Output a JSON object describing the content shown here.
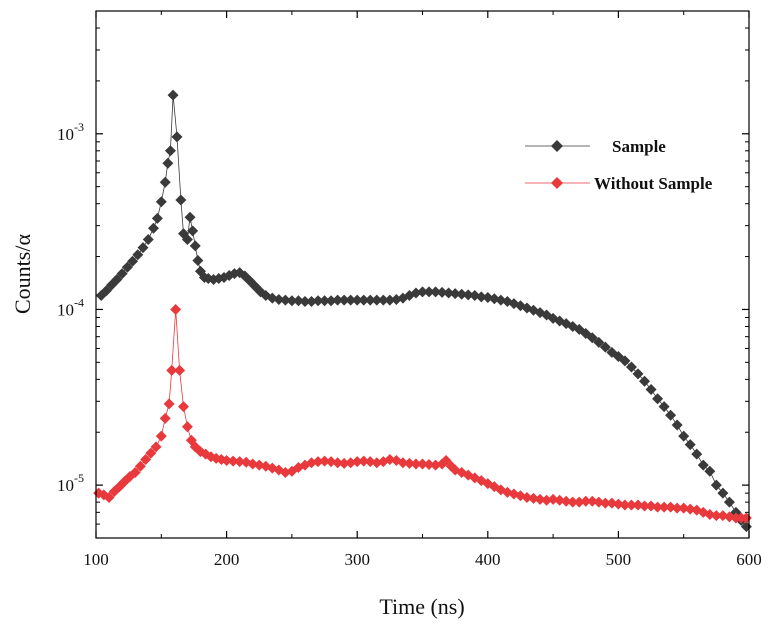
{
  "chart_data": {
    "type": "scatter",
    "title": "",
    "xlabel": "Time (ns)",
    "ylabel": "Counts/α",
    "xlim": [
      100,
      600
    ],
    "ylim": [
      5e-06,
      0.005
    ],
    "yscale": "log",
    "grid": false,
    "legend_position": "top-right",
    "x_ticks": [
      100,
      200,
      300,
      400,
      500,
      600
    ],
    "y_ticks": [
      {
        "value": 0.001,
        "base": "10",
        "exp": "-3"
      },
      {
        "value": 0.0001,
        "base": "10",
        "exp": "-4"
      },
      {
        "value": 1e-05,
        "base": "10",
        "exp": "-5"
      }
    ],
    "series": [
      {
        "name": "Sample",
        "color": "#3a3a3a",
        "marker": "diamond",
        "points": [
          [
            104,
            0.00012
          ],
          [
            108,
            0.000128
          ],
          [
            112,
            0.000138
          ],
          [
            116,
            0.000148
          ],
          [
            120,
            0.00016
          ],
          [
            124,
            0.000174
          ],
          [
            128,
            0.000188
          ],
          [
            132,
            0.000205
          ],
          [
            136,
            0.000225
          ],
          [
            140,
            0.00025
          ],
          [
            144,
            0.00029
          ],
          [
            147,
            0.00033
          ],
          [
            150,
            0.00041
          ],
          [
            153,
            0.00053
          ],
          [
            155,
            0.00068
          ],
          [
            157,
            0.0008
          ],
          [
            159,
            0.00166
          ],
          [
            162,
            0.00096
          ],
          [
            165,
            0.00042
          ],
          [
            167,
            0.00027
          ],
          [
            170,
            0.00025
          ],
          [
            172,
            0.000335
          ],
          [
            174,
            0.00028
          ],
          [
            176,
            0.00023
          ],
          [
            178,
            0.00019
          ],
          [
            180,
            0.000165
          ],
          [
            183,
            0.000152
          ],
          [
            186,
            0.00015
          ],
          [
            190,
            0.000148
          ],
          [
            194,
            0.00015
          ],
          [
            198,
            0.000152
          ],
          [
            202,
            0.000156
          ],
          [
            206,
            0.00016
          ],
          [
            210,
            0.000162
          ],
          [
            214,
            0.000155
          ],
          [
            218,
            0.000145
          ],
          [
            222,
            0.000135
          ],
          [
            226,
            0.000126
          ],
          [
            230,
            0.00012
          ],
          [
            235,
            0.000116
          ],
          [
            240,
            0.000114
          ],
          [
            245,
            0.000113
          ],
          [
            250,
            0.000112
          ],
          [
            255,
            0.000112
          ],
          [
            260,
            0.000111
          ],
          [
            265,
            0.000111
          ],
          [
            270,
            0.000112
          ],
          [
            275,
            0.000112
          ],
          [
            280,
            0.000112
          ],
          [
            285,
            0.000113
          ],
          [
            290,
            0.000113
          ],
          [
            295,
            0.000113
          ],
          [
            300,
            0.000113
          ],
          [
            305,
            0.000113
          ],
          [
            310,
            0.000113
          ],
          [
            315,
            0.000113
          ],
          [
            320,
            0.000113
          ],
          [
            325,
            0.000113
          ],
          [
            330,
            0.000114
          ],
          [
            335,
            0.000116
          ],
          [
            340,
            0.00012
          ],
          [
            345,
            0.000124
          ],
          [
            350,
            0.000126
          ],
          [
            355,
            0.000126
          ],
          [
            360,
            0.000126
          ],
          [
            365,
            0.000125
          ],
          [
            370,
            0.000124
          ],
          [
            375,
            0.000123
          ],
          [
            380,
            0.000122
          ],
          [
            385,
            0.000121
          ],
          [
            390,
            0.00012
          ],
          [
            395,
            0.000118
          ],
          [
            400,
            0.000117
          ],
          [
            405,
            0.000115
          ],
          [
            410,
            0.000113
          ],
          [
            415,
            0.000111
          ],
          [
            420,
            0.000108
          ],
          [
            425,
            0.000105
          ],
          [
            430,
            0.000102
          ],
          [
            435,
            9.9e-05
          ],
          [
            440,
            9.6e-05
          ],
          [
            445,
            9.3e-05
          ],
          [
            450,
            8.9e-05
          ],
          [
            455,
            8.6e-05
          ],
          [
            460,
            8.3e-05
          ],
          [
            465,
            8e-05
          ],
          [
            470,
            7.7e-05
          ],
          [
            475,
            7.3e-05
          ],
          [
            480,
            6.9e-05
          ],
          [
            485,
            6.5e-05
          ],
          [
            490,
            6.1e-05
          ],
          [
            495,
            5.7e-05
          ],
          [
            500,
            5.4e-05
          ],
          [
            505,
            5.1e-05
          ],
          [
            510,
            4.7e-05
          ],
          [
            515,
            4.3e-05
          ],
          [
            520,
            3.9e-05
          ],
          [
            525,
            3.5e-05
          ],
          [
            530,
            3.1e-05
          ],
          [
            535,
            2.8e-05
          ],
          [
            540,
            2.5e-05
          ],
          [
            545,
            2.2e-05
          ],
          [
            550,
            1.9e-05
          ],
          [
            555,
            1.7e-05
          ],
          [
            560,
            1.5e-05
          ],
          [
            565,
            1.3e-05
          ],
          [
            570,
            1.2e-05
          ],
          [
            575,
            1e-05
          ],
          [
            580,
            9e-06
          ],
          [
            585,
            8e-06
          ],
          [
            590,
            7e-06
          ],
          [
            594,
            6.3e-06
          ],
          [
            598,
            5.8e-06
          ]
        ]
      },
      {
        "name": "Without Sample",
        "color": "#e8393d",
        "marker": "diamond",
        "points": [
          [
            102,
            9e-06
          ],
          [
            106,
            8.8e-06
          ],
          [
            110,
            8.5e-06
          ],
          [
            114,
            9.2e-06
          ],
          [
            118,
            9.8e-06
          ],
          [
            122,
            1.05e-05
          ],
          [
            126,
            1.12e-05
          ],
          [
            130,
            1.18e-05
          ],
          [
            134,
            1.28e-05
          ],
          [
            138,
            1.4e-05
          ],
          [
            142,
            1.52e-05
          ],
          [
            146,
            1.65e-05
          ],
          [
            150,
            1.9e-05
          ],
          [
            153,
            2.4e-05
          ],
          [
            156,
            2.9e-05
          ],
          [
            158,
            4.5e-05
          ],
          [
            161,
            0.0001
          ],
          [
            164,
            4.5e-05
          ],
          [
            167,
            2.8e-05
          ],
          [
            170,
            2.15e-05
          ],
          [
            173,
            1.8e-05
          ],
          [
            176,
            1.65e-05
          ],
          [
            180,
            1.55e-05
          ],
          [
            184,
            1.5e-05
          ],
          [
            188,
            1.45e-05
          ],
          [
            192,
            1.42e-05
          ],
          [
            196,
            1.4e-05
          ],
          [
            200,
            1.38e-05
          ],
          [
            205,
            1.37e-05
          ],
          [
            210,
            1.36e-05
          ],
          [
            215,
            1.35e-05
          ],
          [
            220,
            1.32e-05
          ],
          [
            225,
            1.3e-05
          ],
          [
            230,
            1.28e-05
          ],
          [
            235,
            1.25e-05
          ],
          [
            240,
            1.22e-05
          ],
          [
            245,
            1.18e-05
          ],
          [
            250,
            1.2e-05
          ],
          [
            255,
            1.26e-05
          ],
          [
            260,
            1.3e-05
          ],
          [
            265,
            1.34e-05
          ],
          [
            270,
            1.36e-05
          ],
          [
            275,
            1.37e-05
          ],
          [
            280,
            1.36e-05
          ],
          [
            285,
            1.34e-05
          ],
          [
            290,
            1.33e-05
          ],
          [
            295,
            1.34e-05
          ],
          [
            300,
            1.36e-05
          ],
          [
            305,
            1.37e-05
          ],
          [
            310,
            1.36e-05
          ],
          [
            315,
            1.34e-05
          ],
          [
            320,
            1.36e-05
          ],
          [
            325,
            1.4e-05
          ],
          [
            330,
            1.38e-05
          ],
          [
            335,
            1.34e-05
          ],
          [
            340,
            1.33e-05
          ],
          [
            345,
            1.32e-05
          ],
          [
            350,
            1.32e-05
          ],
          [
            355,
            1.31e-05
          ],
          [
            360,
            1.3e-05
          ],
          [
            365,
            1.32e-05
          ],
          [
            368,
            1.38e-05
          ],
          [
            372,
            1.28e-05
          ],
          [
            375,
            1.22e-05
          ],
          [
            380,
            1.18e-05
          ],
          [
            385,
            1.14e-05
          ],
          [
            390,
            1.1e-05
          ],
          [
            395,
            1.06e-05
          ],
          [
            400,
            1.02e-05
          ],
          [
            405,
            9.8e-06
          ],
          [
            410,
            9.4e-06
          ],
          [
            415,
            9.1e-06
          ],
          [
            420,
            8.9e-06
          ],
          [
            425,
            8.7e-06
          ],
          [
            430,
            8.5e-06
          ],
          [
            435,
            8.4e-06
          ],
          [
            440,
            8.3e-06
          ],
          [
            445,
            8.2e-06
          ],
          [
            450,
            8.3e-06
          ],
          [
            455,
            8.2e-06
          ],
          [
            460,
            8.1e-06
          ],
          [
            465,
            8e-06
          ],
          [
            470,
            8e-06
          ],
          [
            475,
            8.1e-06
          ],
          [
            480,
            8.1e-06
          ],
          [
            485,
            8e-06
          ],
          [
            490,
            7.9e-06
          ],
          [
            495,
            7.9e-06
          ],
          [
            500,
            7.8e-06
          ],
          [
            505,
            7.7e-06
          ],
          [
            510,
            7.7e-06
          ],
          [
            515,
            7.7e-06
          ],
          [
            520,
            7.6e-06
          ],
          [
            525,
            7.6e-06
          ],
          [
            530,
            7.5e-06
          ],
          [
            535,
            7.5e-06
          ],
          [
            540,
            7.5e-06
          ],
          [
            545,
            7.4e-06
          ],
          [
            550,
            7.4e-06
          ],
          [
            555,
            7.3e-06
          ],
          [
            560,
            7.2e-06
          ],
          [
            565,
            7e-06
          ],
          [
            570,
            6.8e-06
          ],
          [
            575,
            6.7e-06
          ],
          [
            580,
            6.7e-06
          ],
          [
            585,
            6.6e-06
          ],
          [
            590,
            6.5e-06
          ],
          [
            594,
            6.5e-06
          ],
          [
            598,
            6.5e-06
          ]
        ]
      }
    ]
  }
}
